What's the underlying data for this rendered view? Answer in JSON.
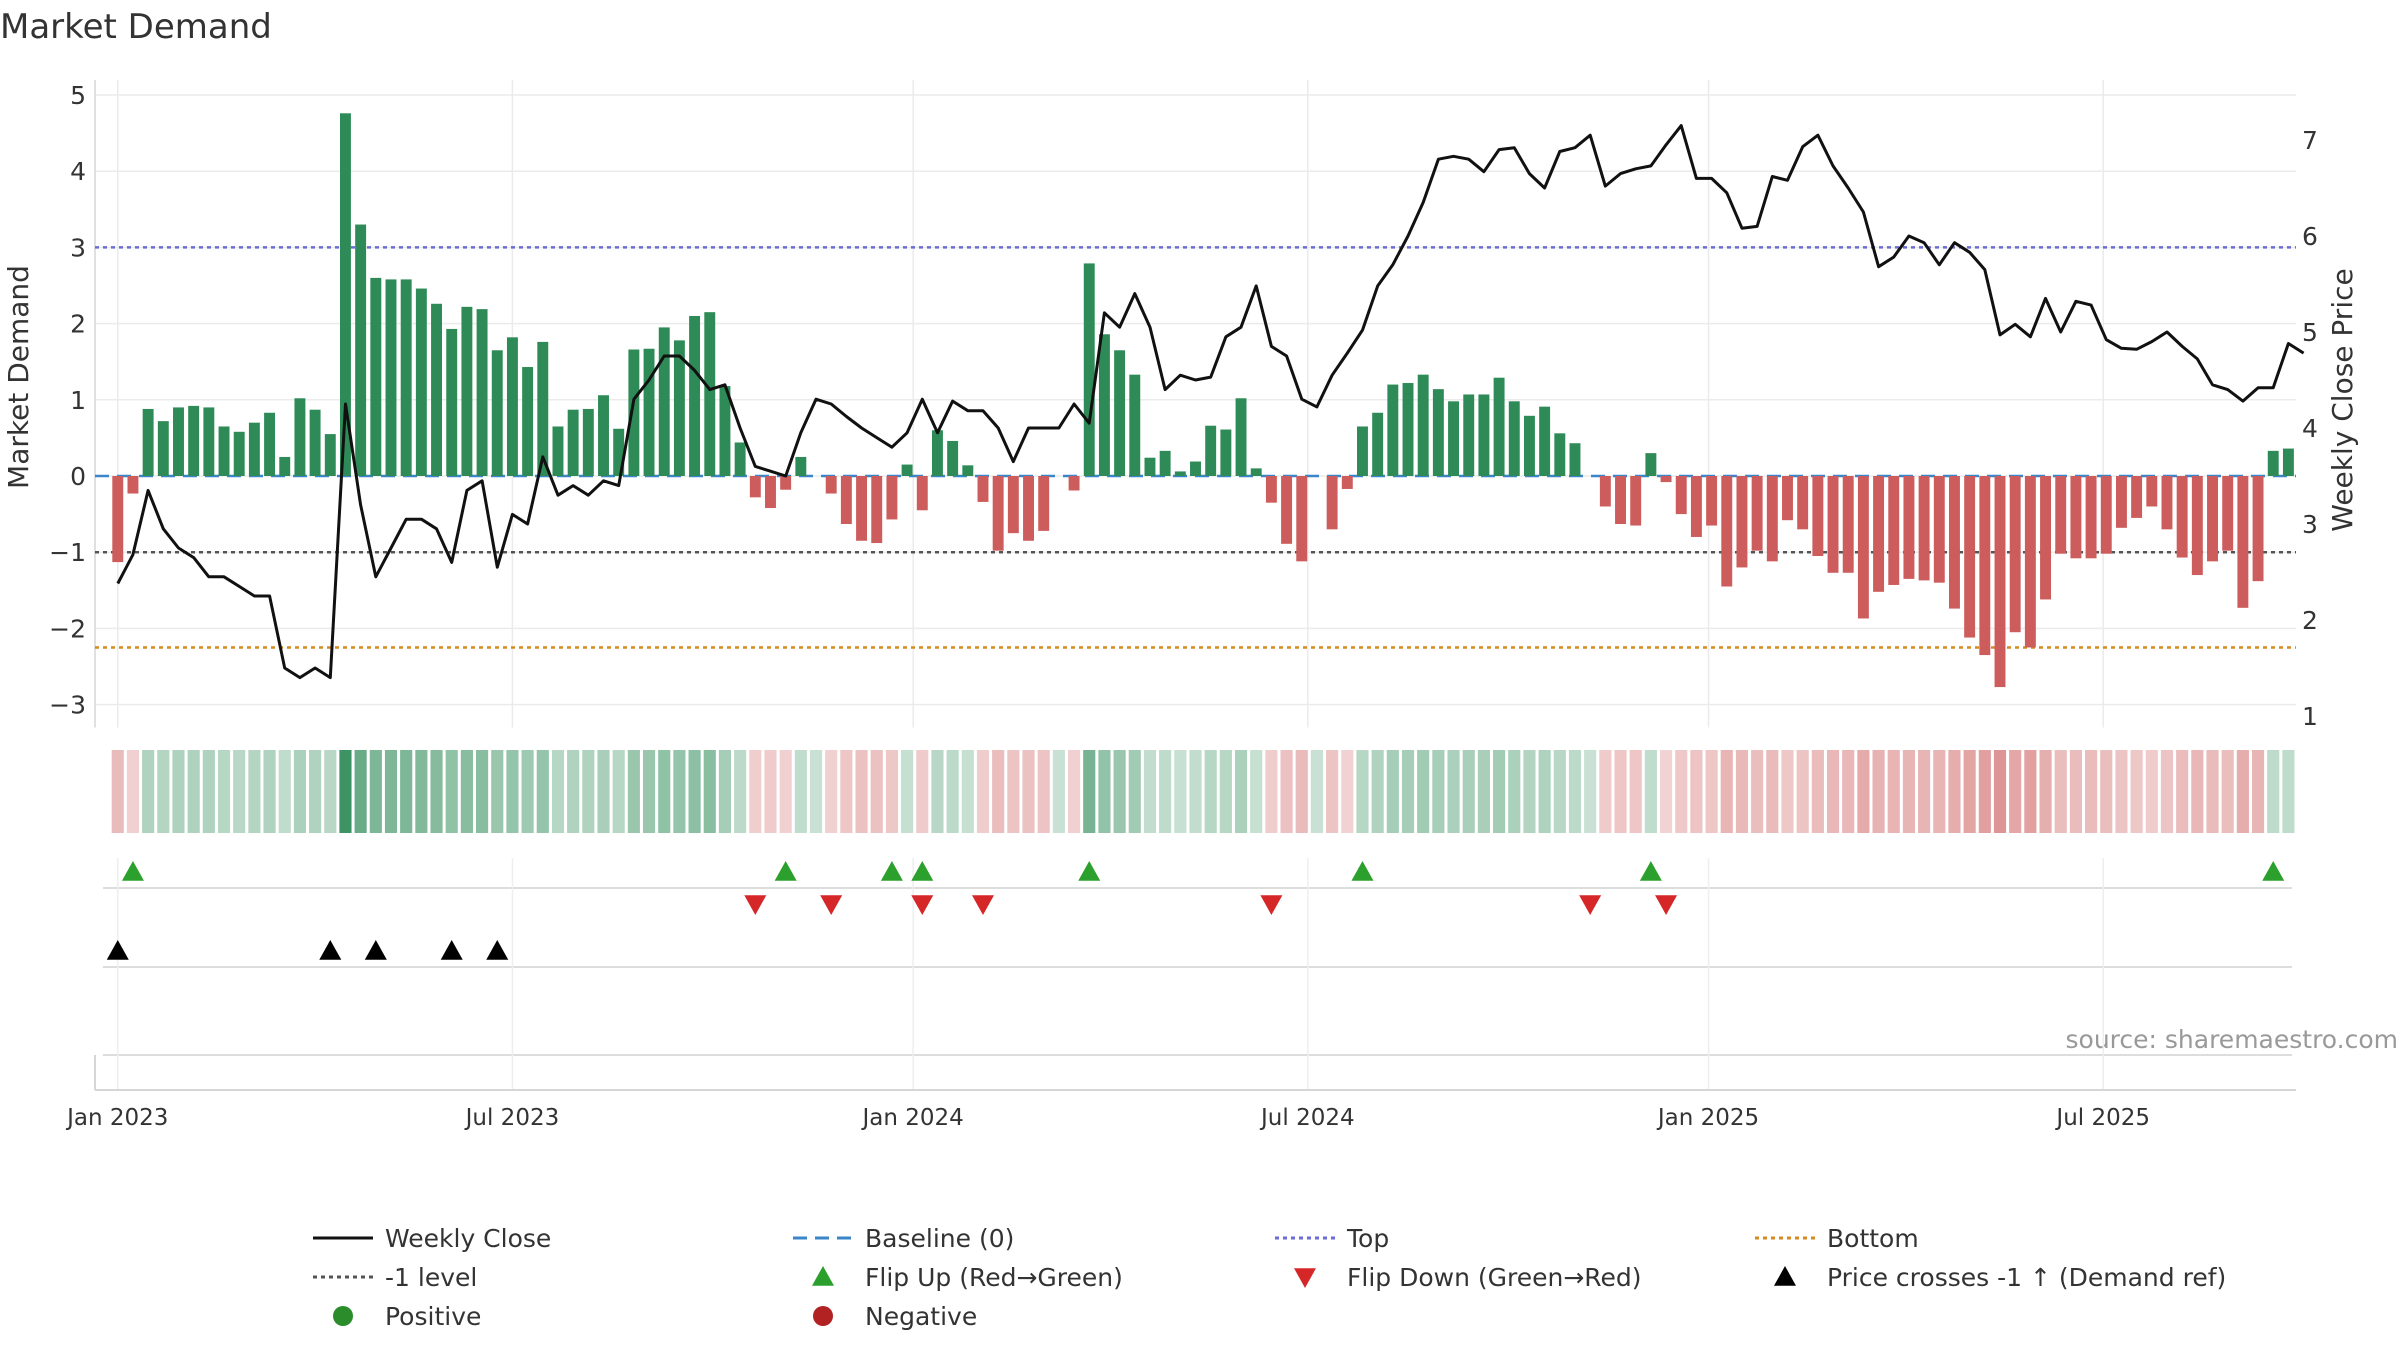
{
  "chart_data": {
    "type": "bar",
    "title": "Market Demand",
    "ylabel": "Market Demand",
    "y2label": "Weekly Close Price",
    "ylim": [
      -3.3,
      5.2
    ],
    "y2lim": [
      0.9,
      7.55
    ],
    "yticks": [
      -3,
      -2,
      -1,
      0,
      1,
      2,
      3,
      4,
      5
    ],
    "ytick_labels": [
      "−3",
      "−2",
      "−1",
      "0",
      "1",
      "2",
      "3",
      "4",
      "5"
    ],
    "y2ticks": [
      1,
      2,
      3,
      4,
      5,
      6,
      7
    ],
    "y2tick_labels": [
      "1",
      "2",
      "3",
      "4",
      "5",
      "6",
      "7"
    ],
    "x_start_index": -1.5,
    "x_end_index": 143.5,
    "xticks": [
      {
        "label": "Jan 2023",
        "index": 0.0
      },
      {
        "label": "Jul 2023",
        "index": 26.0
      },
      {
        "label": "Jan 2024",
        "index": 52.4
      },
      {
        "label": "Jul 2024",
        "index": 78.4
      },
      {
        "label": "Jan 2025",
        "index": 104.8
      },
      {
        "label": "Jul 2025",
        "index": 130.8
      }
    ],
    "reference_lines": {
      "baseline": 0,
      "top": 3.0,
      "minus_one_level": -1,
      "bottom": -2.25
    },
    "source_note": "source: sharemaestro.com",
    "series": [
      {
        "name": "Market Demand",
        "kind": "bar",
        "values": [
          -1.13,
          -0.23,
          0.88,
          0.72,
          0.9,
          0.92,
          0.9,
          0.65,
          0.58,
          0.7,
          0.83,
          0.25,
          1.02,
          0.87,
          0.55,
          4.76,
          3.3,
          2.6,
          2.58,
          2.58,
          2.46,
          2.26,
          1.93,
          2.22,
          2.19,
          1.65,
          1.82,
          1.43,
          1.76,
          0.65,
          0.87,
          0.88,
          1.06,
          0.62,
          1.66,
          1.67,
          1.95,
          1.78,
          2.1,
          2.15,
          1.18,
          0.44,
          -0.28,
          -0.42,
          -0.18,
          0.25,
          0.0,
          -0.23,
          -0.63,
          -0.85,
          -0.88,
          -0.57,
          0.15,
          -0.45,
          0.6,
          0.46,
          0.14,
          -0.34,
          -0.98,
          -0.75,
          -0.85,
          -0.72,
          0.0,
          -0.19,
          2.79,
          1.86,
          1.65,
          1.33,
          0.24,
          0.33,
          0.06,
          0.19,
          0.66,
          0.61,
          1.02,
          0.1,
          -0.35,
          -0.89,
          -1.12,
          0.0,
          -0.7,
          -0.17,
          0.65,
          0.83,
          1.2,
          1.22,
          1.33,
          1.14,
          0.98,
          1.07,
          1.07,
          1.29,
          0.98,
          0.79,
          0.91,
          0.56,
          0.43,
          0.0,
          -0.4,
          -0.63,
          -0.65,
          0.3,
          -0.08,
          -0.5,
          -0.8,
          -0.65,
          -1.45,
          -1.2,
          -0.98,
          -1.12,
          -0.58,
          -0.7,
          -1.05,
          -1.27,
          -1.27,
          -1.87,
          -1.52,
          -1.43,
          -1.35,
          -1.37,
          -1.4,
          -1.74,
          -2.12,
          -2.35,
          -2.77,
          -2.05,
          -2.25,
          -1.62,
          -1.02,
          -1.08,
          -1.08,
          -1.02,
          -0.68,
          -0.55,
          -0.4,
          -0.7,
          -1.07,
          -1.3,
          -1.12,
          -0.98,
          -1.73,
          -1.38,
          0.33,
          0.36
        ]
      },
      {
        "name": "Weekly Close",
        "kind": "line",
        "values": [
          2.38,
          2.68,
          3.35,
          2.95,
          2.75,
          2.65,
          2.45,
          2.45,
          2.35,
          2.25,
          2.25,
          1.5,
          1.4,
          1.5,
          1.4,
          4.25,
          3.2,
          2.45,
          2.75,
          3.05,
          3.05,
          2.95,
          2.6,
          3.35,
          3.45,
          2.55,
          3.1,
          3.0,
          3.7,
          3.3,
          3.4,
          3.3,
          3.45,
          3.4,
          4.3,
          4.5,
          4.75,
          4.75,
          4.6,
          4.4,
          4.45,
          4.0,
          3.6,
          3.55,
          3.5,
          3.95,
          4.3,
          4.25,
          4.12,
          4.0,
          3.9,
          3.8,
          3.95,
          4.3,
          3.95,
          4.28,
          4.18,
          4.18,
          4.0,
          3.65,
          4.0,
          4.0,
          4.0,
          4.25,
          4.05,
          5.2,
          5.05,
          5.4,
          5.05,
          4.4,
          4.55,
          4.5,
          4.53,
          4.95,
          5.05,
          5.48,
          4.85,
          4.75,
          4.3,
          4.22,
          4.55,
          4.78,
          5.02,
          5.48,
          5.7,
          6.0,
          6.35,
          6.8,
          6.83,
          6.8,
          6.67,
          6.9,
          6.92,
          6.65,
          6.5,
          6.88,
          6.92,
          7.05,
          6.52,
          6.65,
          6.7,
          6.73,
          6.95,
          7.15,
          6.6,
          6.6,
          6.45,
          6.08,
          6.1,
          6.62,
          6.58,
          6.93,
          7.05,
          6.73,
          6.5,
          6.25,
          5.68,
          5.78,
          6.0,
          5.93,
          5.7,
          5.93,
          5.83,
          5.65,
          4.97,
          5.08,
          4.95,
          5.35,
          5.0,
          5.32,
          5.28,
          4.92,
          4.83,
          4.82,
          4.9,
          5.0,
          4.85,
          4.72,
          4.45,
          4.4,
          4.28,
          4.42,
          4.42,
          4.88,
          4.78
        ]
      }
    ],
    "flip_up_indices": [
      1,
      44,
      51,
      53,
      64,
      82,
      101,
      142
    ],
    "flip_down_indices": [
      42,
      47,
      53,
      57,
      76,
      97,
      102
    ],
    "price_cross_indices": [
      0,
      14,
      17,
      22,
      25
    ],
    "legend": {
      "position": "bottom",
      "entries": [
        {
          "label": "Weekly Close",
          "kind": "line-solid",
          "color": "#111111"
        },
        {
          "label": "Baseline (0)",
          "kind": "line-dash",
          "color": "#3a86c8"
        },
        {
          "label": "Top",
          "kind": "line-dot",
          "color": "#6b6bd6"
        },
        {
          "label": "Bottom",
          "kind": "line-dot",
          "color": "#d48a1e"
        },
        {
          "label": "-1 level",
          "kind": "line-dot",
          "color": "#555555"
        },
        {
          "label": "Flip Up (Red→Green)",
          "kind": "triangle-up",
          "color": "#2ca02c"
        },
        {
          "label": "Flip Down (Green→Red)",
          "kind": "triangle-down",
          "color": "#d62728"
        },
        {
          "label": "Price crosses -1 ↑ (Demand ref)",
          "kind": "triangle-up",
          "color": "#000000"
        },
        {
          "label": "Positive",
          "kind": "circle",
          "color": "#2a8c2a"
        },
        {
          "label": "Negative",
          "kind": "circle",
          "color": "#b22222"
        }
      ]
    },
    "colors": {
      "positive_bar": "#2e8b57",
      "negative_bar": "#cd5c5c",
      "price_line": "#111111",
      "baseline": "#3a86c8",
      "top_line": "#6b6bd6",
      "bottom_line": "#d48a1e",
      "minus_one_line": "#555555",
      "flip_up": "#2ca02c",
      "flip_down": "#d62728",
      "price_cross": "#000000",
      "text": "#333333",
      "source_text": "#999999"
    }
  }
}
